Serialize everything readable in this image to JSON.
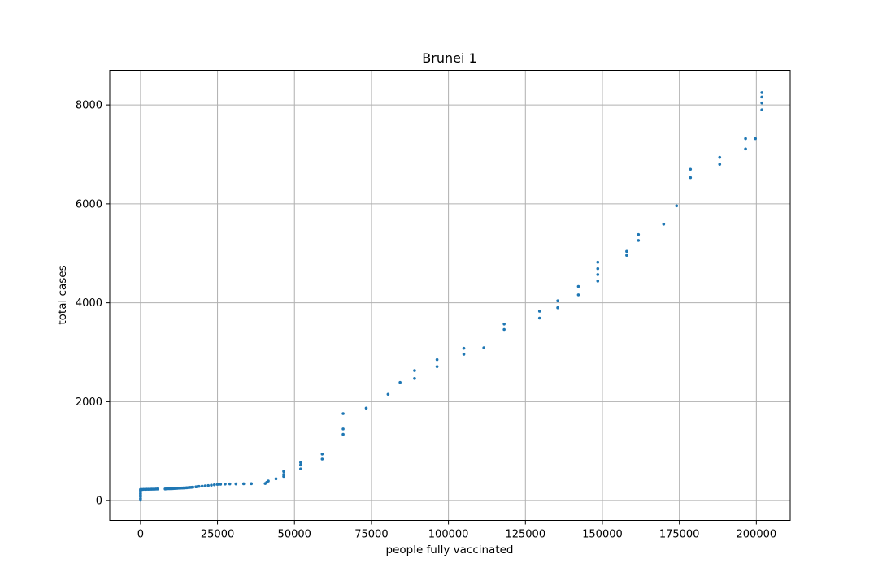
{
  "chart_data": {
    "type": "scatter",
    "title": "Brunei 1",
    "xlabel": "people fully vaccinated",
    "ylabel": "total cases",
    "xlim": [
      -10000,
      211000
    ],
    "ylim": [
      -400,
      8700
    ],
    "grid": true,
    "marker_color": "#1f77b4",
    "xticks": [
      0,
      25000,
      50000,
      75000,
      100000,
      125000,
      150000,
      175000,
      200000
    ],
    "yticks": [
      0,
      2000,
      4000,
      6000,
      8000
    ],
    "points": [
      [
        0,
        10
      ],
      [
        0,
        40
      ],
      [
        0,
        80
      ],
      [
        0,
        110
      ],
      [
        0,
        140
      ],
      [
        0,
        170
      ],
      [
        0,
        200
      ],
      [
        0,
        225
      ],
      [
        500,
        225
      ],
      [
        1000,
        228
      ],
      [
        1500,
        228
      ],
      [
        2000,
        229
      ],
      [
        2500,
        230
      ],
      [
        3000,
        230
      ],
      [
        3500,
        231
      ],
      [
        4000,
        232
      ],
      [
        4500,
        232
      ],
      [
        5000,
        233
      ],
      [
        5500,
        235
      ],
      [
        8000,
        236
      ],
      [
        8500,
        238
      ],
      [
        9000,
        240
      ],
      [
        9500,
        241
      ],
      [
        10000,
        242
      ],
      [
        10500,
        243
      ],
      [
        11000,
        245
      ],
      [
        11500,
        247
      ],
      [
        12000,
        249
      ],
      [
        12500,
        251
      ],
      [
        13000,
        252
      ],
      [
        13500,
        254
      ],
      [
        14000,
        256
      ],
      [
        14500,
        258
      ],
      [
        15000,
        260
      ],
      [
        15500,
        263
      ],
      [
        16000,
        266
      ],
      [
        16500,
        268
      ],
      [
        17000,
        272
      ],
      [
        18000,
        278
      ],
      [
        18500,
        283
      ],
      [
        19000,
        288
      ],
      [
        20000,
        292
      ],
      [
        21000,
        298
      ],
      [
        22000,
        304
      ],
      [
        23000,
        312
      ],
      [
        24000,
        320
      ],
      [
        25000,
        327
      ],
      [
        26000,
        331
      ],
      [
        27500,
        335
      ],
      [
        29000,
        337
      ],
      [
        31000,
        338
      ],
      [
        33500,
        340
      ],
      [
        36000,
        342
      ],
      [
        40500,
        345
      ],
      [
        41000,
        370
      ],
      [
        41500,
        395
      ],
      [
        44000,
        440
      ],
      [
        46500,
        490
      ],
      [
        46500,
        530
      ],
      [
        46500,
        590
      ],
      [
        52000,
        640
      ],
      [
        52000,
        720
      ],
      [
        52000,
        770
      ],
      [
        59000,
        840
      ],
      [
        59000,
        940
      ],
      [
        65800,
        1340
      ],
      [
        65800,
        1450
      ],
      [
        65800,
        1760
      ],
      [
        73300,
        1870
      ],
      [
        80400,
        2150
      ],
      [
        84300,
        2390
      ],
      [
        89000,
        2470
      ],
      [
        89000,
        2630
      ],
      [
        96300,
        2710
      ],
      [
        96300,
        2850
      ],
      [
        105000,
        2960
      ],
      [
        105000,
        3080
      ],
      [
        111500,
        3090
      ],
      [
        118100,
        3460
      ],
      [
        118100,
        3570
      ],
      [
        129600,
        3690
      ],
      [
        129600,
        3830
      ],
      [
        135500,
        3900
      ],
      [
        135500,
        4040
      ],
      [
        142200,
        4160
      ],
      [
        142200,
        4330
      ],
      [
        148500,
        4440
      ],
      [
        148500,
        4570
      ],
      [
        148500,
        4690
      ],
      [
        148500,
        4820
      ],
      [
        157900,
        4960
      ],
      [
        157900,
        5040
      ],
      [
        161700,
        5260
      ],
      [
        161700,
        5380
      ],
      [
        169900,
        5590
      ],
      [
        174100,
        5960
      ],
      [
        178600,
        6530
      ],
      [
        178600,
        6700
      ],
      [
        188100,
        6800
      ],
      [
        188100,
        6940
      ],
      [
        196500,
        7110
      ],
      [
        196500,
        7320
      ],
      [
        199700,
        7320
      ],
      [
        201800,
        7900
      ],
      [
        201800,
        8040
      ],
      [
        201800,
        8160
      ],
      [
        201800,
        8250
      ]
    ]
  }
}
